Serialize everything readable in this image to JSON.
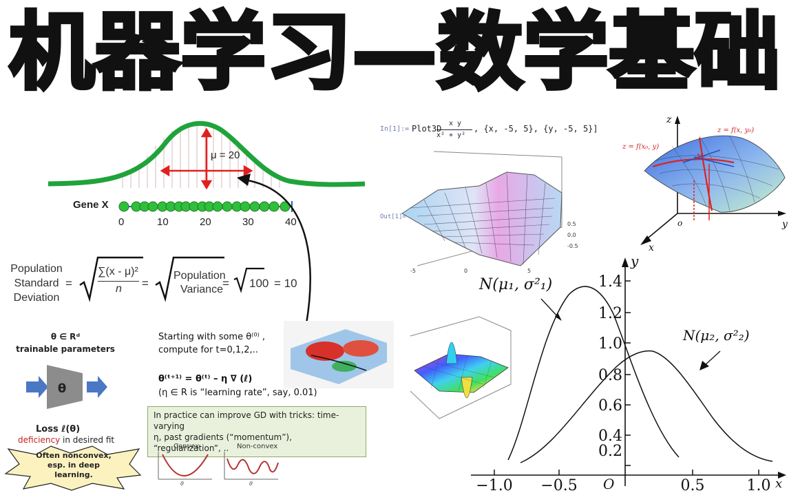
{
  "title": "机器学习—数学基础",
  "gaussian": {
    "mu_label": "μ = 20",
    "gene_label": "Gene X",
    "ticks": [
      "0",
      "10",
      "20",
      "30",
      "40"
    ]
  },
  "std_formula": {
    "label_line1": "Population",
    "label_line2": "Standard",
    "label_line3": "Deviation",
    "eq1": "=",
    "frac_num": "∑(x - μ)²",
    "frac_den": "n",
    "eq2": "=",
    "pop_line1": "Population",
    "pop_line2": "Variance",
    "eq3": "=",
    "sqrt_val": "100",
    "eq4": "= 10"
  },
  "param_block": {
    "theta_space": "θ ∈ Rᵈ",
    "trainable": "trainable parameters",
    "theta": "θ",
    "loss": "Loss  ℓ(θ)",
    "deficiency": "deficiency",
    "fit_text": " in  desired fit",
    "burst_line1": "Often nonconvex,",
    "burst_line2": "esp. in deep",
    "burst_line3": "learning."
  },
  "gd": {
    "line1": "Starting with some  θ⁽⁰⁾ ,",
    "line2": "compute for t=0,1,2,..",
    "update": "θ⁽ᵗ⁺¹⁾ =  θ⁽ᵗ⁾ –  η ∇ (ℓ)",
    "lr_note": "(η ∈ R is “learning rate”, say, 0.01)",
    "box_line1": "In practice can improve GD with tricks: time-varying",
    "box_line2": "η, past gradients (“momentum”), “regularization”, ..",
    "convex": "Convex",
    "nonconvex": "Non-convex",
    "theta_axis": "θ"
  },
  "mathematica": {
    "in_label": "In[1]:=",
    "cmd": "Plot3D",
    "frac_num": "x y",
    "frac_den": "x² + y²",
    "args": ", {x, -5, 5}, {y, -5, 5}]",
    "out_label": "Out[1]=",
    "ticks_x": [
      "-5",
      "0",
      "5"
    ],
    "ticks_z": [
      "0.5",
      "0.0",
      "-0.5"
    ]
  },
  "partial": {
    "z": "z",
    "x": "x",
    "y": "y",
    "o": "o",
    "label_left": "z = f(x₀, y)",
    "label_right": "z = f(x, y₀)",
    "m0": "M₀"
  },
  "normal_plot": {
    "y_label": "y",
    "x_label": "x",
    "origin": "O",
    "n1_label": "N(μ₁, σ²₁)",
    "n2_label": "N(μ₂, σ²₂)",
    "y_ticks": [
      "1.4",
      "1.2",
      "1.0",
      "0.8",
      "0.6",
      "0.4",
      "0.2"
    ],
    "x_ticks": [
      "−1.0",
      "−0.5",
      "0.5",
      "1.0"
    ]
  },
  "colors": {
    "gaussian_curve": "#1fa33b",
    "arrow_red": "#e02020",
    "dot_green": "#2fbf3a",
    "gd_box": "#e9f1dc"
  }
}
